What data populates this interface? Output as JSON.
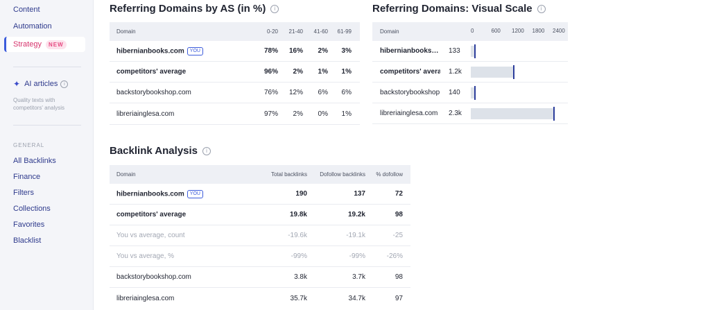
{
  "sidebar": {
    "items_top": [
      {
        "label": "Content"
      },
      {
        "label": "Automation"
      }
    ],
    "active_item": {
      "label": "Strategy",
      "badge": "NEW"
    },
    "ai": {
      "label": "AI articles",
      "desc": "Quality texts with competitors' analysis"
    },
    "general_heading": "GENERAL",
    "general_items": [
      {
        "label": "All Backlinks"
      },
      {
        "label": "Finance"
      },
      {
        "label": "Filters"
      },
      {
        "label": "Collections"
      },
      {
        "label": "Favorites"
      },
      {
        "label": "Blacklist"
      }
    ]
  },
  "as_table": {
    "title": "Referring Domains by AS (in %)",
    "headers": [
      "Domain",
      "0-20",
      "21-40",
      "41-60",
      "61-99"
    ],
    "you_badge": "YOU",
    "rows": [
      {
        "domain": "hibernianbooks.com",
        "values": [
          "78%",
          "16%",
          "2%",
          "3%"
        ]
      },
      {
        "domain": "competitors' average",
        "values": [
          "96%",
          "2%",
          "1%",
          "1%"
        ]
      },
      {
        "domain": "backstorybookshop.com",
        "values": [
          "76%",
          "12%",
          "6%",
          "6%"
        ]
      },
      {
        "domain": "libreriainglesa.com",
        "values": [
          "97%",
          "2%",
          "0%",
          "1%"
        ]
      }
    ]
  },
  "scale_table": {
    "title": "Referring Domains: Visual Scale",
    "header_domain": "Domain",
    "axis_ticks": [
      "0",
      "600",
      "1200",
      "1800",
      "2400"
    ],
    "axis_max": 2400,
    "rows": [
      {
        "domain": "hibernianbooks.com",
        "label": "133",
        "value": 133
      },
      {
        "domain": "competitors' average",
        "label": "1.2k",
        "value": 1200
      },
      {
        "domain": "backstorybookshop.com",
        "label": "140",
        "value": 140
      },
      {
        "domain": "libreriainglesa.com",
        "label": "2.3k",
        "value": 2300
      }
    ]
  },
  "backlink_table": {
    "title": "Backlink Analysis",
    "headers": [
      "Domain",
      "Total backlinks",
      "Dofollow backlinks",
      "% dofollow"
    ],
    "rows": [
      {
        "domain": "hibernianbooks.com",
        "values": [
          "190",
          "137",
          "72"
        ]
      },
      {
        "domain": "competitors' average",
        "values": [
          "19.8k",
          "19.2k",
          "98"
        ]
      },
      {
        "domain": "You vs average, count",
        "values": [
          "-19.6k",
          "-19.1k",
          "-25"
        ]
      },
      {
        "domain": "You vs average, %",
        "values": [
          "-99%",
          "-99%",
          "-26%"
        ]
      },
      {
        "domain": "backstorybookshop.com",
        "values": [
          "3.8k",
          "3.7k",
          "98"
        ]
      },
      {
        "domain": "libreriainglesa.com",
        "values": [
          "35.7k",
          "34.7k",
          "97"
        ]
      }
    ]
  }
}
